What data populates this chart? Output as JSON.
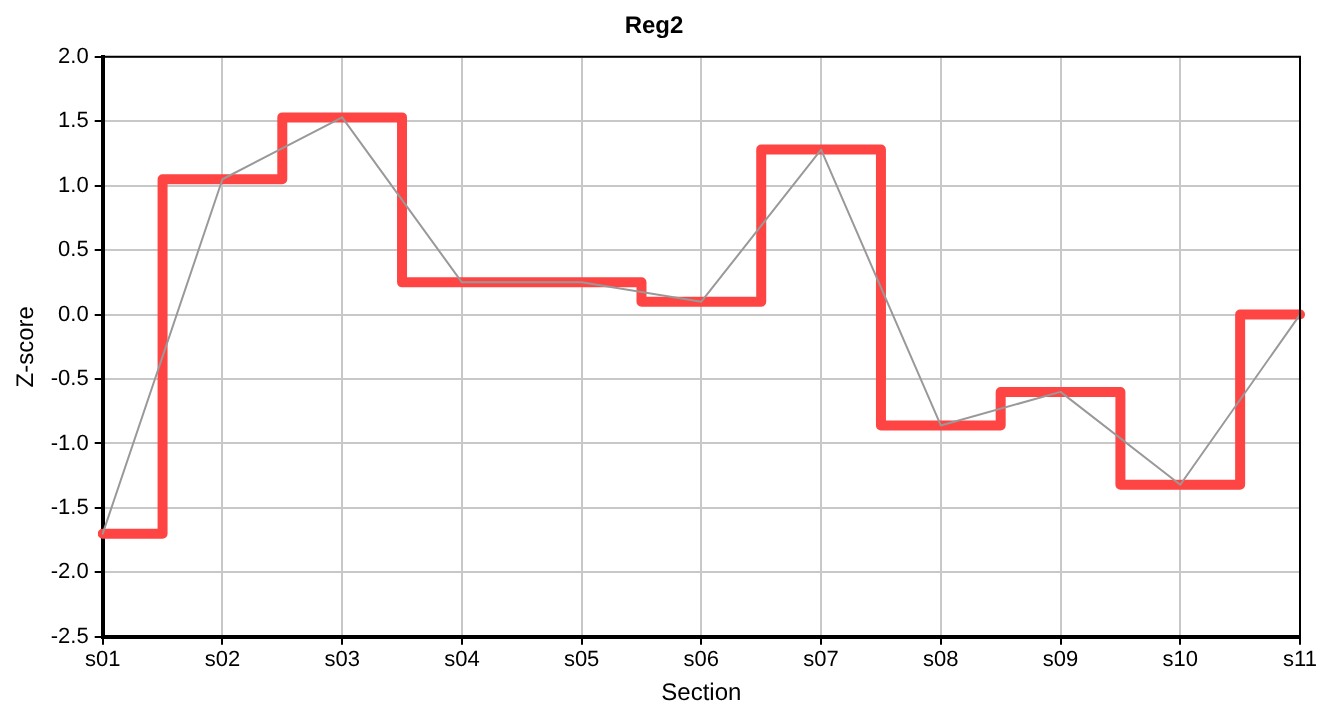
{
  "chart_data": {
    "type": "step",
    "title": "Reg2",
    "xlabel": "Section",
    "ylabel": "Z-score",
    "categories": [
      "s01",
      "s02",
      "s03",
      "s04",
      "s05",
      "s06",
      "s07",
      "s08",
      "s09",
      "s10",
      "s11"
    ],
    "series": [
      {
        "type": "line",
        "color": "#999999",
        "values": [
          -1.7,
          1.05,
          1.53,
          0.25,
          0.25,
          0.1,
          1.28,
          -0.86,
          -0.6,
          -1.32,
          0.0
        ]
      },
      {
        "type": "step",
        "color": "#ff4444",
        "values": [
          -1.7,
          1.05,
          1.53,
          0.25,
          0.25,
          0.1,
          1.28,
          -0.86,
          -0.6,
          -1.32,
          0.0
        ]
      }
    ],
    "ylim": [
      -2.5,
      2.0
    ],
    "yticks": [
      -2.5,
      {
        "value": -2,
        "label": "-2.0"
      },
      -1.5,
      {
        "value": -1,
        "label": "-1.0"
      },
      -0.5,
      {
        "value": 0,
        "label": "0.0"
      },
      0.5,
      {
        "value": 1,
        "label": "1.0"
      },
      1.5,
      {
        "value": 2,
        "label": "2.0"
      }
    ],
    "grid": true,
    "legend": false,
    "marker": "none"
  }
}
